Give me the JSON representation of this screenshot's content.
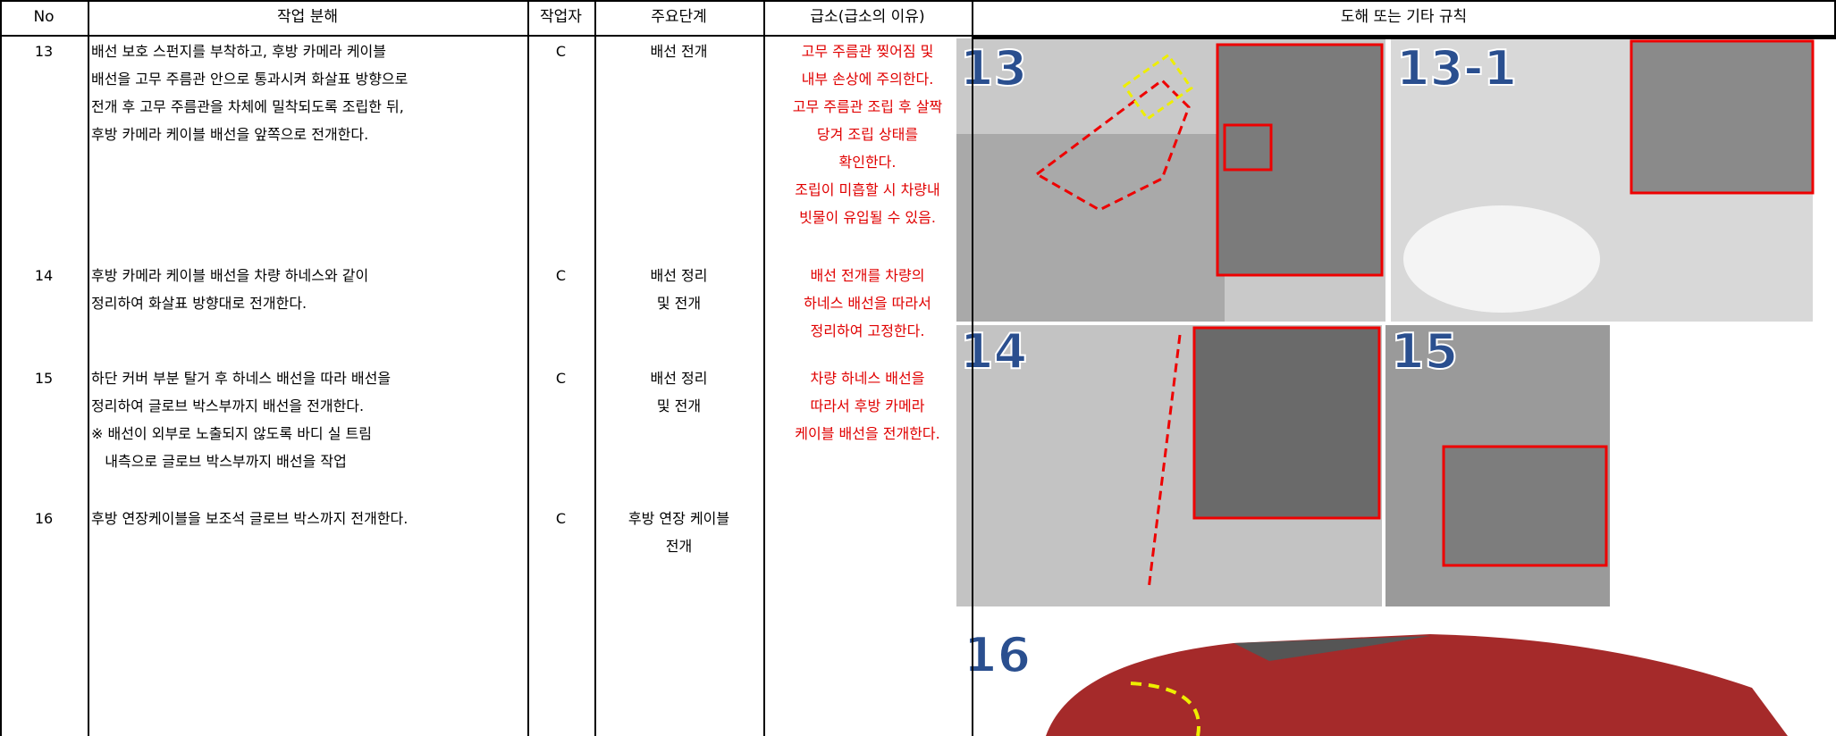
{
  "header": {
    "no": "No",
    "task": "작업 분해",
    "worker": "작업자",
    "step": "주요단계",
    "key_point": "급소(급소의 이유)",
    "illustration": "도해 또는 기타 규칙"
  },
  "rows": [
    {
      "no": "13",
      "task": [
        "배선 보호 스펀지를 부착하고, 후방 카메라 케이블",
        "배선을 고무 주름관 안으로 통과시켜 화살표 방향으로",
        "전개 후 고무 주름관을 차체에 밀착되도록 조립한 뒤,",
        "후방 카메라 케이블 배선을 앞쪽으로 전개한다."
      ],
      "worker": "C",
      "step": [
        "배선 전개"
      ],
      "key_point": [
        "고무 주름관 찢어짐 및",
        "내부 손상에 주의한다.",
        "고무 주름관 조립 후 살짝",
        "당겨 조립 상태를",
        "확인한다.",
        "조립이 미흡할 시 차량내",
        "빗물이 유입될 수 있음."
      ]
    },
    {
      "no": "14",
      "task": [
        "후방 카메라 케이블 배선을 차량 하네스와 같이",
        "정리하여 화살표 방향대로 전개한다."
      ],
      "worker": "C",
      "step": [
        "배선 정리",
        "및 전개"
      ],
      "key_point": [
        "배선 전개를 차량의",
        "하네스 배선을 따라서",
        "정리하여 고정한다."
      ]
    },
    {
      "no": "15",
      "task": [
        "하단 커버 부분 탈거 후 하네스 배선을 따라 배선을",
        "정리하여 글로브 박스부까지 배선을 전개한다.",
        "※ 배선이 외부로 노출되지 않도록 바디 실 트림",
        "   내측으로 글로브 박스부까지 배선을 작업"
      ],
      "worker": "C",
      "step": [
        "배선 정리",
        "및 전개"
      ],
      "key_point": [
        "차량 하네스 배선을",
        "따라서 후방 카메라",
        "케이블 배선을 전개한다."
      ]
    },
    {
      "no": "16",
      "task": [
        "후방 연장케이블을 보조석 글로브 박스까지 전개한다."
      ],
      "worker": "C",
      "step": [
        "후방 연장 케이블",
        "전개"
      ],
      "key_point": []
    }
  ],
  "figures": [
    "13",
    "13-1",
    "14",
    "15",
    "16"
  ]
}
